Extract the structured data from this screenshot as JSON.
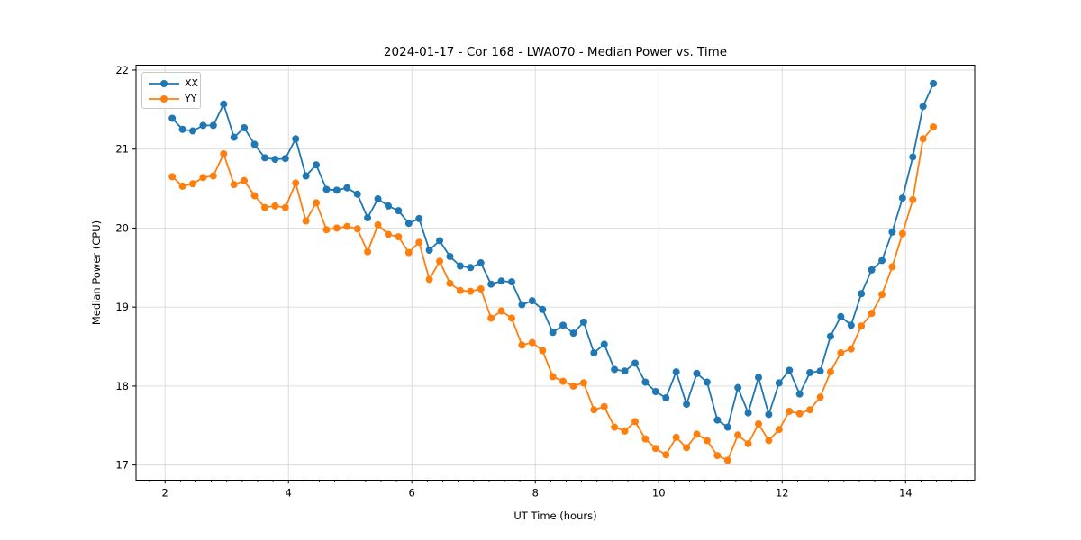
{
  "chart_data": {
    "type": "line",
    "title": "2024-01-17 - Cor 168 - LWA070 - Median Power vs. Time",
    "xlabel": "UT Time (hours)",
    "ylabel": "Median Power (CPU)",
    "xlim": [
      1.53,
      15.12
    ],
    "ylim": [
      16.81,
      22.06
    ],
    "xticks": [
      2,
      4,
      6,
      8,
      10,
      12,
      14
    ],
    "yticks": [
      17,
      18,
      19,
      20,
      21,
      22
    ],
    "minor_xtick_step": 0.25,
    "grid": true,
    "grid_color": "#d9d9d9",
    "legend_position": "upper left",
    "marker": "o",
    "x": [
      2.117,
      2.283,
      2.45,
      2.617,
      2.783,
      2.95,
      3.117,
      3.283,
      3.45,
      3.617,
      3.783,
      3.95,
      4.117,
      4.283,
      4.45,
      4.617,
      4.783,
      4.95,
      5.117,
      5.283,
      5.45,
      5.617,
      5.783,
      5.95,
      6.117,
      6.283,
      6.45,
      6.617,
      6.783,
      6.95,
      7.117,
      7.283,
      7.45,
      7.617,
      7.783,
      7.95,
      8.117,
      8.283,
      8.45,
      8.617,
      8.783,
      8.95,
      9.117,
      9.283,
      9.45,
      9.617,
      9.783,
      9.95,
      10.117,
      10.283,
      10.45,
      10.617,
      10.783,
      10.95,
      11.117,
      11.283,
      11.45,
      11.617,
      11.783,
      11.95,
      12.117,
      12.283,
      12.45,
      12.617,
      12.783,
      12.95,
      13.117,
      13.283,
      13.45,
      13.617,
      13.783,
      13.95,
      14.117,
      14.283,
      14.45
    ],
    "series": [
      {
        "name": "XX",
        "color": "#1f77b4",
        "values": [
          21.39,
          21.25,
          21.23,
          21.3,
          21.3,
          21.57,
          21.15,
          21.27,
          21.06,
          20.89,
          20.87,
          20.88,
          21.13,
          20.66,
          20.8,
          20.49,
          20.48,
          20.51,
          20.43,
          20.13,
          20.37,
          20.28,
          20.22,
          20.06,
          20.12,
          19.72,
          19.84,
          19.64,
          19.52,
          19.5,
          19.56,
          19.29,
          19.33,
          19.32,
          19.03,
          19.08,
          18.97,
          18.68,
          18.77,
          18.67,
          18.81,
          18.42,
          18.53,
          18.21,
          18.19,
          18.29,
          18.05,
          17.93,
          17.85,
          18.18,
          17.77,
          18.16,
          18.05,
          17.57,
          17.48,
          17.98,
          17.66,
          18.11,
          17.64,
          18.04,
          18.2,
          17.9,
          18.17,
          18.19,
          18.63,
          18.88,
          18.77,
          19.17,
          19.47,
          19.59,
          19.95,
          20.38,
          20.9,
          21.54,
          21.83
        ]
      },
      {
        "name": "YY",
        "color": "#ff7f0e",
        "values": [
          20.65,
          20.53,
          20.56,
          20.64,
          20.66,
          20.94,
          20.55,
          20.6,
          20.41,
          20.26,
          20.28,
          20.26,
          20.57,
          20.09,
          20.32,
          19.98,
          20.0,
          20.02,
          19.99,
          19.7,
          20.04,
          19.92,
          19.89,
          19.69,
          19.82,
          19.35,
          19.58,
          19.3,
          19.21,
          19.2,
          19.23,
          18.86,
          18.95,
          18.86,
          18.52,
          18.55,
          18.45,
          18.12,
          18.06,
          18.0,
          18.04,
          17.7,
          17.74,
          17.48,
          17.43,
          17.55,
          17.33,
          17.21,
          17.13,
          17.35,
          17.22,
          17.39,
          17.31,
          17.12,
          17.06,
          17.38,
          17.27,
          17.52,
          17.31,
          17.45,
          17.68,
          17.65,
          17.7,
          17.86,
          18.18,
          18.42,
          18.47,
          18.76,
          18.92,
          19.16,
          19.51,
          19.93,
          20.36,
          21.13,
          21.28
        ]
      }
    ]
  },
  "legend": {
    "entries": [
      {
        "label": "XX",
        "color": "#1f77b4"
      },
      {
        "label": "YY",
        "color": "#ff7f0e"
      }
    ]
  }
}
